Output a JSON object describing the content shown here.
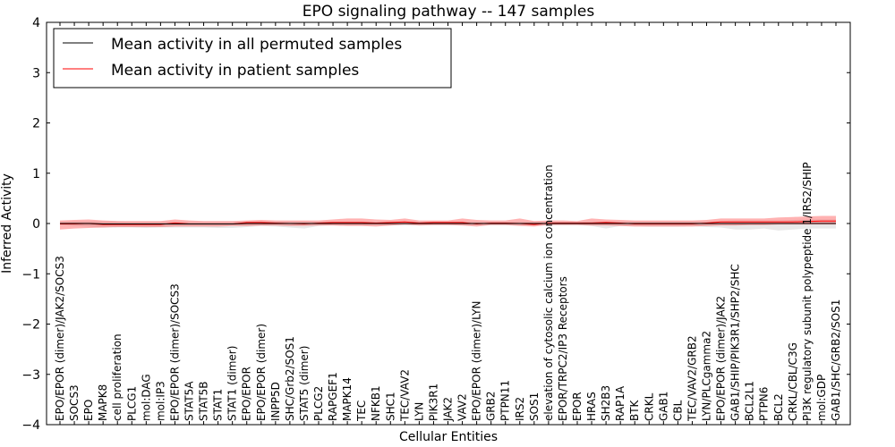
{
  "chart_data": {
    "type": "line",
    "title": "EPO signaling pathway -- 147 samples",
    "xlabel": "Cellular Entities",
    "ylabel": "Inferred Activity",
    "ylim": [
      -4,
      4
    ],
    "yticks": [
      -4,
      -3,
      -2,
      -1,
      0,
      1,
      2,
      3,
      4
    ],
    "ytick_labels": [
      "−4",
      "−3",
      "−2",
      "−1",
      "0",
      "1",
      "2",
      "3",
      "4"
    ],
    "legend_position": "top-left",
    "categories": [
      "EPO/EPOR (dimer)/JAK2/SOCS3",
      "SOCS3",
      "EPO",
      "MAPK8",
      "cell proliferation",
      "PLCG1",
      "mol:DAG",
      "mol:IP3",
      "EPO/EPOR (dimer)/SOCS3",
      "STAT5A",
      "STAT5B",
      "STAT1",
      "STAT1 (dimer)",
      "EPO/EPOR",
      "EPO/EPOR (dimer)",
      "INPP5D",
      "SHC/Grb2/SOS1",
      "STAT5 (dimer)",
      "PLCG2",
      "RAPGEF1",
      "MAPK14",
      "TEC",
      "NFKB1",
      "SHC1",
      "TEC/VAV2",
      "LYN",
      "PIK3R1",
      "JAK2",
      "VAV2",
      "EPO/EPOR (dimer)/LYN",
      "GRB2",
      "PTPN11",
      "IRS2",
      "SOS1",
      "elevation of cytosolic calcium ion concentration",
      "EPOR/TRPC2/IP3 Receptors",
      "EPOR",
      "HRAS",
      "SH2B3",
      "RAP1A",
      "BTK",
      "CRKL",
      "GAB1",
      "CBL",
      "TEC/VAV2/GRB2",
      "LYN/PLCgamma2",
      "EPO/EPOR (dimer)/JAK2",
      "GAB1/SHIP/PIK3R1/SHP2/SHC",
      "BCL2L1",
      "PTPN6",
      "BCL2",
      "CRKL/CBL/C3G",
      "PI3K regulatory subunit polypeptide 1/IRS2/SHIP",
      "mol:GDP",
      "GAB1/SHC/GRB2/SOS1"
    ],
    "series": [
      {
        "name": "Mean activity in all permuted samples",
        "color": "#000000",
        "values": [
          0,
          0,
          0,
          -0.01,
          -0.01,
          -0.01,
          -0.01,
          -0.01,
          -0.01,
          -0.01,
          -0.01,
          -0.01,
          -0.01,
          0,
          0,
          0,
          0,
          0,
          0,
          0,
          0,
          0,
          0,
          0,
          0,
          0,
          0,
          0,
          0,
          0,
          0,
          0,
          0,
          0,
          0,
          0,
          0,
          0,
          0,
          0,
          0,
          0,
          0,
          0,
          0,
          0,
          0,
          0,
          0,
          0,
          0,
          0,
          0,
          0,
          0
        ],
        "band_lower": [
          -0.03,
          -0.05,
          -0.06,
          -0.08,
          -0.08,
          -0.08,
          -0.09,
          -0.08,
          -0.08,
          -0.08,
          -0.08,
          -0.09,
          -0.09,
          -0.07,
          -0.05,
          -0.06,
          -0.08,
          -0.1,
          -0.05,
          -0.03,
          -0.03,
          -0.03,
          -0.03,
          -0.04,
          -0.04,
          -0.03,
          -0.03,
          -0.03,
          -0.03,
          -0.03,
          -0.03,
          -0.03,
          -0.03,
          -0.03,
          -0.03,
          -0.03,
          -0.03,
          -0.05,
          -0.1,
          -0.05,
          -0.05,
          -0.06,
          -0.06,
          -0.06,
          -0.05,
          -0.07,
          -0.08,
          -0.12,
          -0.12,
          -0.1,
          -0.14,
          -0.12,
          -0.1,
          -0.1,
          -0.1
        ],
        "band_upper": [
          0.03,
          0.04,
          0.04,
          0.04,
          0.04,
          0.03,
          0.03,
          0.03,
          0.04,
          0.03,
          0.03,
          0.03,
          0.03,
          0.03,
          0.04,
          0.04,
          0.04,
          0.04,
          0.03,
          0.03,
          0.03,
          0.03,
          0.03,
          0.04,
          0.04,
          0.03,
          0.03,
          0.03,
          0.03,
          0.03,
          0.03,
          0.03,
          0.03,
          0.03,
          0.03,
          0.03,
          0.03,
          0.04,
          0.04,
          0.04,
          0.04,
          0.04,
          0.04,
          0.04,
          0.04,
          0.04,
          0.05,
          0.06,
          0.06,
          0.06,
          0.06,
          0.07,
          0.08,
          0.08,
          0.08
        ]
      },
      {
        "name": "Mean activity in patient samples",
        "color": "#ff0000",
        "values": [
          -0.01,
          -0.01,
          0,
          -0.02,
          -0.02,
          -0.02,
          -0.02,
          -0.02,
          0.01,
          -0.01,
          -0.01,
          -0.01,
          -0.01,
          0.02,
          0.02,
          0.01,
          0,
          -0.01,
          0.01,
          0.02,
          0.02,
          0.02,
          0.01,
          0.02,
          0.03,
          0.01,
          0.02,
          0.02,
          0.02,
          -0.01,
          0.01,
          0.01,
          0,
          -0.02,
          0.01,
          0.01,
          0.01,
          0.01,
          0.02,
          0.01,
          -0.01,
          -0.01,
          -0.01,
          -0.01,
          -0.01,
          0.01,
          0.03,
          0.03,
          0.03,
          0.03,
          0.03,
          0.03,
          0.04,
          0.05,
          0.05
        ],
        "band_lower": [
          -0.12,
          -0.1,
          -0.09,
          -0.08,
          -0.07,
          -0.07,
          -0.07,
          -0.07,
          -0.06,
          -0.06,
          -0.06,
          -0.06,
          -0.05,
          -0.05,
          -0.04,
          -0.04,
          -0.05,
          -0.05,
          -0.04,
          -0.04,
          -0.05,
          -0.05,
          -0.06,
          -0.04,
          -0.02,
          -0.04,
          -0.03,
          -0.03,
          -0.04,
          -0.06,
          -0.03,
          -0.03,
          -0.05,
          -0.06,
          -0.03,
          -0.03,
          -0.03,
          -0.04,
          -0.04,
          -0.05,
          -0.06,
          -0.06,
          -0.06,
          -0.06,
          -0.06,
          -0.05,
          -0.04,
          -0.04,
          -0.03,
          -0.03,
          -0.02,
          -0.02,
          -0.02,
          -0.02,
          -0.02
        ],
        "band_upper": [
          0.06,
          0.07,
          0.08,
          0.06,
          0.05,
          0.05,
          0.05,
          0.05,
          0.08,
          0.06,
          0.05,
          0.05,
          0.05,
          0.06,
          0.07,
          0.06,
          0.06,
          0.06,
          0.06,
          0.08,
          0.1,
          0.1,
          0.08,
          0.07,
          0.1,
          0.06,
          0.06,
          0.06,
          0.1,
          0.07,
          0.06,
          0.06,
          0.1,
          0.05,
          0.06,
          0.06,
          0.05,
          0.1,
          0.08,
          0.07,
          0.06,
          0.06,
          0.06,
          0.06,
          0.06,
          0.07,
          0.1,
          0.1,
          0.1,
          0.1,
          0.12,
          0.13,
          0.14,
          0.15,
          0.15
        ]
      }
    ]
  }
}
